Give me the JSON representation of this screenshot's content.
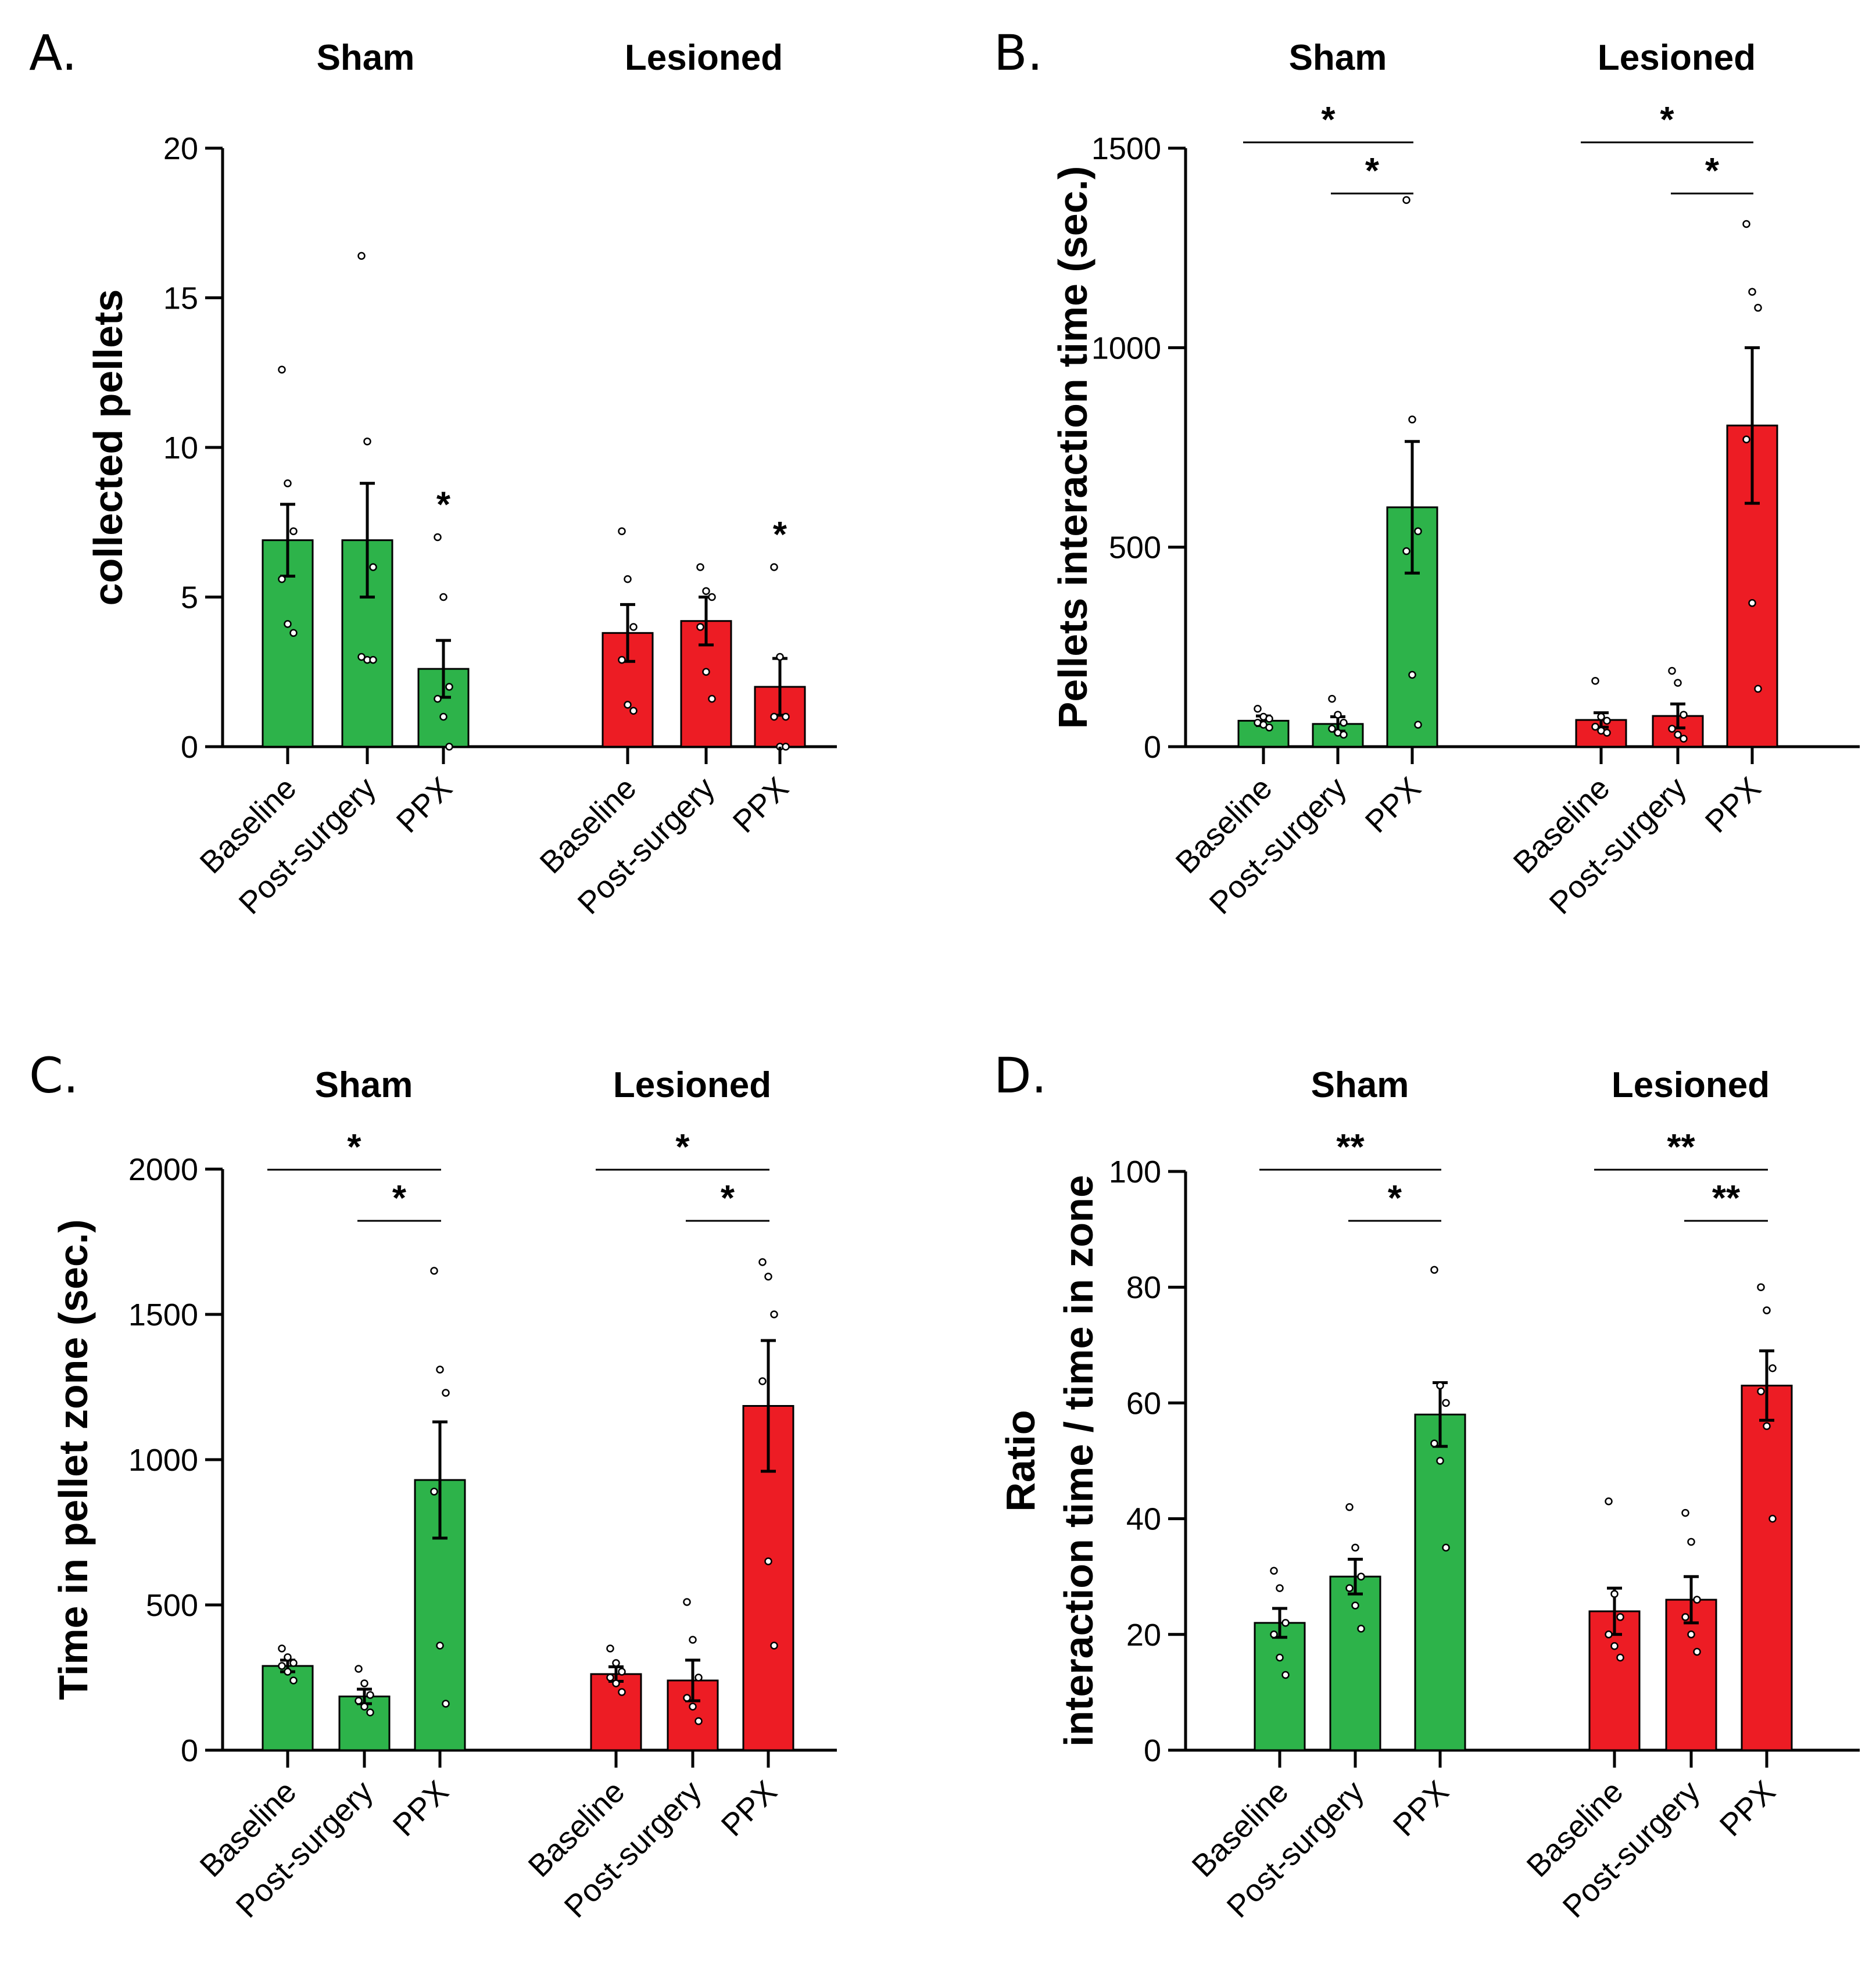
{
  "colors": {
    "sham": "#2db34a",
    "lesioned": "#ed1c24",
    "outline": "#000000"
  },
  "chart_data": [
    {
      "panel": "A.",
      "type": "bar",
      "ylabel": [
        "collected pellets"
      ],
      "ylim": [
        0,
        20
      ],
      "yticks": [
        0,
        5,
        10,
        15,
        20
      ],
      "groups": [
        {
          "title": "Sham",
          "color": "sham",
          "bars": [
            {
              "label": "Baseline",
              "mean": 6.9,
              "sem": 1.2,
              "points": [
                12.6,
                8.8,
                7.2,
                5.6,
                4.1,
                3.8
              ],
              "star": ""
            },
            {
              "label": "Post-surgery",
              "mean": 6.9,
              "sem": 1.9,
              "points": [
                16.4,
                10.2,
                6.0,
                3.0,
                2.9,
                2.9
              ],
              "star": ""
            },
            {
              "label": "PPX",
              "mean": 2.6,
              "sem": 0.95,
              "points": [
                7.0,
                5.0,
                2.0,
                1.6,
                1.0,
                0.0
              ],
              "star": "*"
            }
          ],
          "brackets": []
        },
        {
          "title": "Lesioned",
          "color": "lesioned",
          "bars": [
            {
              "label": "Baseline",
              "mean": 3.8,
              "sem": 0.95,
              "points": [
                7.2,
                5.6,
                4.0,
                2.9,
                1.4,
                1.2
              ],
              "star": ""
            },
            {
              "label": "Post-surgery",
              "mean": 4.2,
              "sem": 0.8,
              "points": [
                6.0,
                5.2,
                5.0,
                4.0,
                2.5,
                1.6
              ],
              "star": ""
            },
            {
              "label": "PPX",
              "mean": 2.0,
              "sem": 0.95,
              "points": [
                6.0,
                3.0,
                1.0,
                1.0,
                0.0,
                0.0
              ],
              "star": "*"
            }
          ],
          "brackets": []
        }
      ]
    },
    {
      "panel": "B.",
      "type": "bar",
      "ylabel": [
        "Pellets interaction time (sec.)"
      ],
      "ylim": [
        0,
        1500
      ],
      "yticks": [
        0,
        500,
        1000,
        1500
      ],
      "groups": [
        {
          "title": "Sham",
          "color": "sham",
          "bars": [
            {
              "label": "Baseline",
              "mean": 65,
              "sem": 12,
              "points": [
                95,
                75,
                70,
                60,
                55,
                48
              ],
              "star": ""
            },
            {
              "label": "Post-surgery",
              "mean": 57,
              "sem": 18,
              "points": [
                120,
                80,
                60,
                45,
                35,
                30
              ],
              "star": ""
            },
            {
              "label": "PPX",
              "mean": 600,
              "sem": 165,
              "points": [
                1370,
                820,
                540,
                490,
                180,
                55
              ],
              "star": ""
            }
          ],
          "brackets": [
            {
              "from": 0,
              "to": 2,
              "text": "*"
            },
            {
              "from": 1,
              "to": 2,
              "text": "*"
            }
          ]
        },
        {
          "title": "Lesioned",
          "color": "lesioned",
          "bars": [
            {
              "label": "Baseline",
              "mean": 67,
              "sem": 18,
              "points": [
                165,
                75,
                65,
                50,
                40,
                35
              ],
              "star": ""
            },
            {
              "label": "Post-surgery",
              "mean": 77,
              "sem": 30,
              "points": [
                190,
                160,
                80,
                45,
                30,
                20
              ],
              "star": ""
            },
            {
              "label": "PPX",
              "mean": 805,
              "sem": 195,
              "points": [
                1310,
                1140,
                1100,
                770,
                360,
                145
              ],
              "star": ""
            }
          ],
          "brackets": [
            {
              "from": 0,
              "to": 2,
              "text": "*"
            },
            {
              "from": 1,
              "to": 2,
              "text": "*"
            }
          ]
        }
      ]
    },
    {
      "panel": "C.",
      "type": "bar",
      "ylabel": [
        "Time in pellet zone (sec.)"
      ],
      "ylim": [
        0,
        2000
      ],
      "yticks": [
        0,
        500,
        1000,
        1500,
        2000
      ],
      "groups": [
        {
          "title": "Sham",
          "color": "sham",
          "bars": [
            {
              "label": "Baseline",
              "mean": 290,
              "sem": 20,
              "points": [
                350,
                320,
                300,
                290,
                270,
                240
              ],
              "star": ""
            },
            {
              "label": "Post-surgery",
              "mean": 185,
              "sem": 25,
              "points": [
                280,
                230,
                190,
                170,
                150,
                130
              ],
              "star": ""
            },
            {
              "label": "PPX",
              "mean": 930,
              "sem": 200,
              "points": [
                1650,
                1310,
                1230,
                890,
                360,
                160
              ],
              "star": ""
            }
          ],
          "brackets": [
            {
              "from": 0,
              "to": 2,
              "text": "*"
            },
            {
              "from": 1,
              "to": 2,
              "text": "*"
            }
          ]
        },
        {
          "title": "Lesioned",
          "color": "lesioned",
          "bars": [
            {
              "label": "Baseline",
              "mean": 262,
              "sem": 25,
              "points": [
                350,
                300,
                270,
                250,
                230,
                200
              ],
              "star": ""
            },
            {
              "label": "Post-surgery",
              "mean": 240,
              "sem": 70,
              "points": [
                510,
                380,
                250,
                180,
                150,
                100
              ],
              "star": ""
            },
            {
              "label": "PPX",
              "mean": 1185,
              "sem": 225,
              "points": [
                1680,
                1630,
                1500,
                1270,
                650,
                360
              ],
              "star": ""
            }
          ],
          "brackets": [
            {
              "from": 0,
              "to": 2,
              "text": "*"
            },
            {
              "from": 1,
              "to": 2,
              "text": "*"
            }
          ]
        }
      ]
    },
    {
      "panel": "D.",
      "type": "bar",
      "ylabel": [
        "Ratio",
        "interaction time / time in zone"
      ],
      "ylim": [
        0,
        100
      ],
      "yticks": [
        0,
        20,
        40,
        60,
        80,
        100
      ],
      "groups": [
        {
          "title": "Sham",
          "color": "sham",
          "bars": [
            {
              "label": "Baseline",
              "mean": 22,
              "sem": 2.5,
              "points": [
                31,
                28,
                22,
                20,
                16,
                13
              ],
              "star": ""
            },
            {
              "label": "Post-surgery",
              "mean": 30,
              "sem": 3,
              "points": [
                42,
                35,
                30,
                28,
                25,
                21
              ],
              "star": ""
            },
            {
              "label": "PPX",
              "mean": 58,
              "sem": 5.5,
              "points": [
                83,
                63,
                60,
                53,
                50,
                35
              ],
              "star": ""
            }
          ],
          "brackets": [
            {
              "from": 0,
              "to": 2,
              "text": "**"
            },
            {
              "from": 1,
              "to": 2,
              "text": "*"
            }
          ]
        },
        {
          "title": "Lesioned",
          "color": "lesioned",
          "bars": [
            {
              "label": "Baseline",
              "mean": 24,
              "sem": 4,
              "points": [
                43,
                27,
                23,
                20,
                18,
                16
              ],
              "star": ""
            },
            {
              "label": "Post-surgery",
              "mean": 26,
              "sem": 4,
              "points": [
                41,
                36,
                26,
                23,
                20,
                17
              ],
              "star": ""
            },
            {
              "label": "PPX",
              "mean": 63,
              "sem": 6,
              "points": [
                80,
                76,
                66,
                62,
                56,
                40
              ],
              "star": ""
            }
          ],
          "brackets": [
            {
              "from": 0,
              "to": 2,
              "text": "**"
            },
            {
              "from": 1,
              "to": 2,
              "text": "**"
            }
          ]
        }
      ]
    }
  ]
}
